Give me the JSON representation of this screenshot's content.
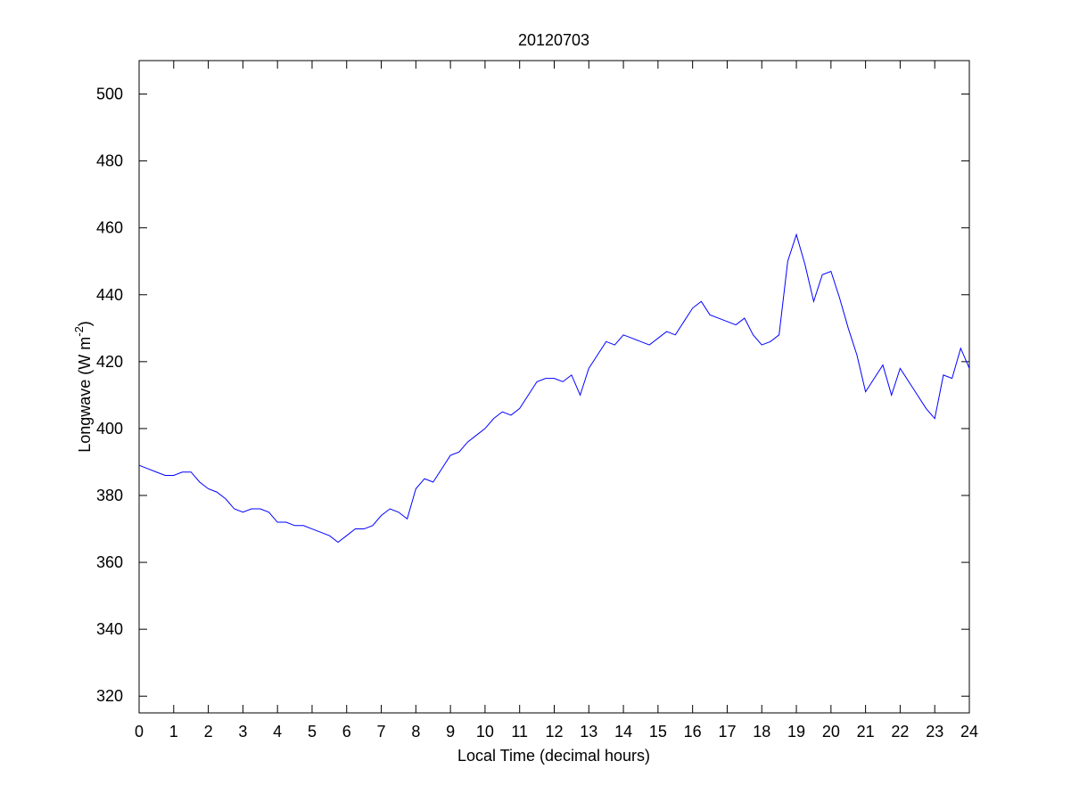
{
  "chart_data": {
    "type": "line",
    "title": "20120703",
    "xlabel": "Local Time (decimal hours)",
    "ylabel": [
      "Longwave (W m",
      "-2",
      ")"
    ],
    "x": [
      0,
      0.25,
      0.5,
      0.75,
      1,
      1.25,
      1.5,
      1.75,
      2,
      2.25,
      2.5,
      2.75,
      3,
      3.25,
      3.5,
      3.75,
      4,
      4.25,
      4.5,
      4.75,
      5,
      5.25,
      5.5,
      5.75,
      6,
      6.25,
      6.5,
      6.75,
      7,
      7.25,
      7.5,
      7.75,
      8,
      8.25,
      8.5,
      8.75,
      9,
      9.25,
      9.5,
      9.75,
      10,
      10.25,
      10.5,
      10.75,
      11,
      11.25,
      11.5,
      11.75,
      12,
      12.25,
      12.5,
      12.75,
      13,
      13.25,
      13.5,
      13.75,
      14,
      14.25,
      14.5,
      14.75,
      15,
      15.25,
      15.5,
      15.75,
      16,
      16.25,
      16.5,
      16.75,
      17,
      17.25,
      17.5,
      17.75,
      18,
      18.25,
      18.5,
      18.75,
      19,
      19.25,
      19.5,
      19.75,
      20,
      20.25,
      20.5,
      20.75,
      21,
      21.25,
      21.5,
      21.75,
      22,
      22.25,
      22.5,
      22.75,
      23,
      23.25,
      23.5,
      23.75,
      24
    ],
    "series": [
      {
        "color": "#0000ff",
        "values": [
          389,
          388,
          387,
          386,
          386,
          387,
          387,
          384,
          382,
          381,
          379,
          376,
          375,
          376,
          376,
          375,
          372,
          372,
          371,
          371,
          370,
          369,
          368,
          366,
          368,
          370,
          370,
          371,
          374,
          376,
          375,
          373,
          382,
          385,
          384,
          388,
          392,
          393,
          396,
          398,
          400,
          403,
          405,
          404,
          406,
          410,
          414,
          415,
          415,
          414,
          416,
          410,
          418,
          422,
          426,
          425,
          428,
          427,
          426,
          425,
          427,
          429,
          428,
          432,
          436,
          438,
          434,
          433,
          432,
          431,
          433,
          428,
          425,
          426,
          428,
          450,
          458,
          449,
          438,
          446,
          447,
          439,
          430,
          422,
          411,
          415,
          419,
          410,
          418,
          414,
          410,
          406,
          403,
          416,
          415,
          424,
          418
        ]
      }
    ],
    "xlim": [
      0,
      24
    ],
    "xticks": [
      0,
      1,
      2,
      3,
      4,
      5,
      6,
      7,
      8,
      9,
      10,
      11,
      12,
      13,
      14,
      15,
      16,
      17,
      18,
      19,
      20,
      21,
      22,
      23,
      24
    ],
    "ylim": [
      315,
      510
    ],
    "yticks": [
      320,
      340,
      360,
      380,
      400,
      420,
      440,
      460,
      480,
      500
    ]
  }
}
